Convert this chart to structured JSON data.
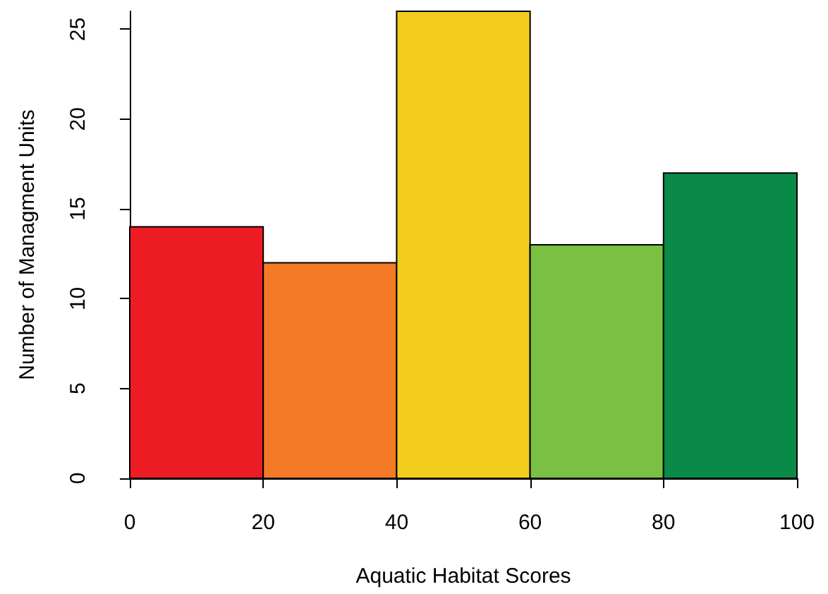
{
  "chart_data": {
    "type": "histogram",
    "xlabel": "Aquatic Habitat Scores",
    "ylabel": "Number of Managment Units",
    "bins": [
      0,
      20,
      40,
      60,
      80,
      100
    ],
    "values": [
      14,
      12,
      26,
      13,
      17
    ],
    "colors": [
      "#ed1c24",
      "#f47a28",
      "#f2cd1d",
      "#7ac143",
      "#0a8a47"
    ],
    "xlim": [
      0,
      100
    ],
    "xticks": [
      0,
      20,
      40,
      60,
      80,
      100
    ],
    "ylim": [
      0,
      26
    ],
    "yticks": [
      0,
      5,
      10,
      15,
      20,
      25
    ]
  }
}
